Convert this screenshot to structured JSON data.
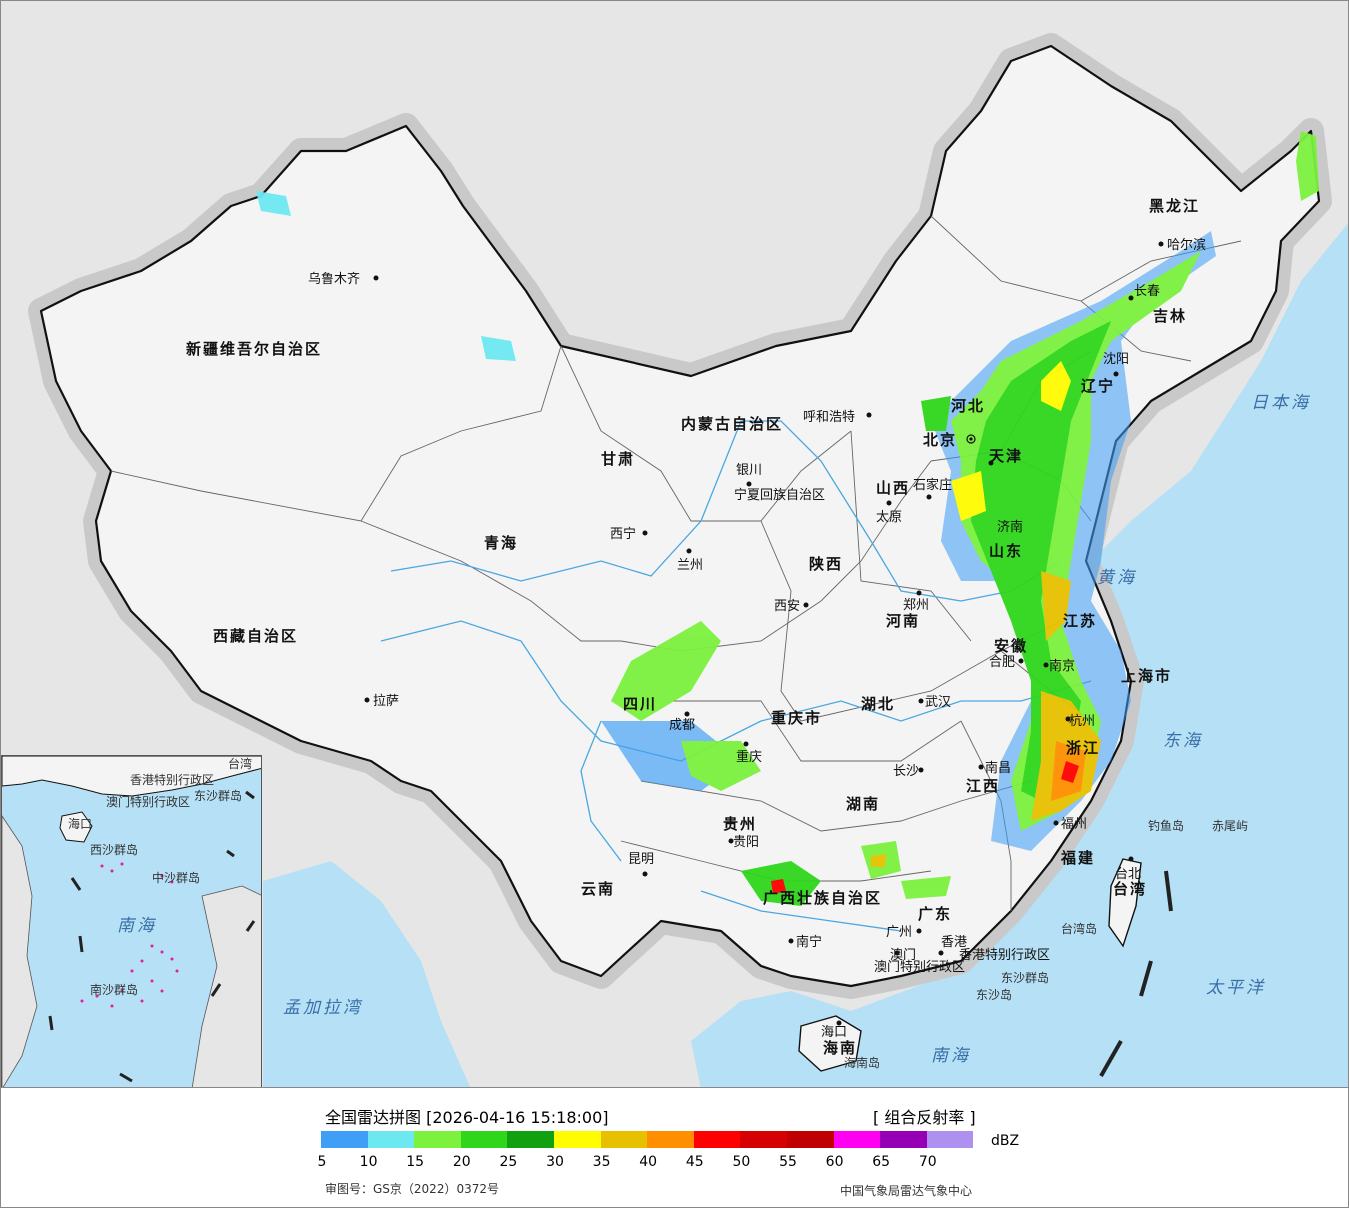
{
  "map": {
    "provinces": [
      {
        "name": "新疆维吾尔自治区"
      },
      {
        "name": "西藏自治区"
      },
      {
        "name": "青海"
      },
      {
        "name": "甘肃"
      },
      {
        "name": "内蒙古自治区"
      },
      {
        "name": "黑龙江"
      },
      {
        "name": "吉林"
      },
      {
        "name": "辽宁"
      },
      {
        "name": "河北"
      },
      {
        "name": "山西"
      },
      {
        "name": "山东"
      },
      {
        "name": "陕西"
      },
      {
        "name": "河南"
      },
      {
        "name": "四川"
      },
      {
        "name": "重庆市"
      },
      {
        "name": "湖北"
      },
      {
        "name": "安徽"
      },
      {
        "name": "江苏"
      },
      {
        "name": "上海市"
      },
      {
        "name": "浙江"
      },
      {
        "name": "江西"
      },
      {
        "name": "湖南"
      },
      {
        "name": "贵州"
      },
      {
        "name": "云南"
      },
      {
        "name": "广西壮族自治区"
      },
      {
        "name": "广东"
      },
      {
        "name": "福建"
      },
      {
        "name": "台湾"
      },
      {
        "name": "海南"
      },
      {
        "name": "宁夏回族自治区"
      },
      {
        "name": "天津"
      },
      {
        "name": "香港特别行政区"
      },
      {
        "name": "澳门特别行政区"
      }
    ],
    "cities": [
      {
        "name": "乌鲁木齐"
      },
      {
        "name": "拉萨"
      },
      {
        "name": "西宁"
      },
      {
        "name": "兰州"
      },
      {
        "name": "银川"
      },
      {
        "name": "呼和浩特"
      },
      {
        "name": "北京"
      },
      {
        "name": "石家庄"
      },
      {
        "name": "太原"
      },
      {
        "name": "济南"
      },
      {
        "name": "西安"
      },
      {
        "name": "郑州"
      },
      {
        "name": "成都"
      },
      {
        "name": "重庆"
      },
      {
        "name": "武汉"
      },
      {
        "name": "合肥"
      },
      {
        "name": "南京"
      },
      {
        "name": "杭州"
      },
      {
        "name": "南昌"
      },
      {
        "name": "长沙"
      },
      {
        "name": "贵阳"
      },
      {
        "name": "昆明"
      },
      {
        "name": "南宁"
      },
      {
        "name": "广州"
      },
      {
        "name": "香港"
      },
      {
        "name": "澳门"
      },
      {
        "name": "福州"
      },
      {
        "name": "台北"
      },
      {
        "name": "海口"
      },
      {
        "name": "沈阳"
      },
      {
        "name": "长春"
      },
      {
        "name": "哈尔滨"
      }
    ],
    "seas": [
      {
        "name": "日本海"
      },
      {
        "name": "黄海"
      },
      {
        "name": "东海"
      },
      {
        "name": "太平洋"
      },
      {
        "name": "南海"
      },
      {
        "name": "孟加拉湾"
      }
    ],
    "islands": [
      {
        "name": "钓鱼岛"
      },
      {
        "name": "赤尾屿"
      },
      {
        "name": "台湾岛"
      },
      {
        "name": "东沙群岛"
      },
      {
        "name": "东沙岛"
      },
      {
        "name": "海南岛"
      }
    ],
    "inset_labels": [
      {
        "name": "南海"
      },
      {
        "name": "海口"
      },
      {
        "name": "香港特别行政区"
      },
      {
        "name": "澳门特别行政区"
      },
      {
        "name": "东沙群岛"
      },
      {
        "name": "西沙群岛"
      },
      {
        "name": "中沙群岛"
      },
      {
        "name": "南沙群岛"
      },
      {
        "name": "台湾"
      }
    ],
    "colors": {
      "land": "#f4f4f4",
      "ocean": "#b5e0f5",
      "outside": "#e6e6e6",
      "border": "#111111",
      "river": "#4aa7e0"
    }
  },
  "legend": {
    "title": "全国雷达拼图 [2026-04-16 15:18:00]",
    "product": "[ 组合反射率 ]",
    "unit": "dBZ",
    "scale": [
      {
        "value": 5,
        "color": "#3f9ef5"
      },
      {
        "value": 10,
        "color": "#6ee8f0"
      },
      {
        "value": 15,
        "color": "#7cf13e"
      },
      {
        "value": 20,
        "color": "#2fd61c"
      },
      {
        "value": 25,
        "color": "#10a010"
      },
      {
        "value": 30,
        "color": "#fffd00"
      },
      {
        "value": 35,
        "color": "#e7c100"
      },
      {
        "value": 40,
        "color": "#ff8f00"
      },
      {
        "value": 45,
        "color": "#ff0000"
      },
      {
        "value": 50,
        "color": "#d60000"
      },
      {
        "value": 55,
        "color": "#c00000"
      },
      {
        "value": 60,
        "color": "#ff00f0"
      },
      {
        "value": 65,
        "color": "#9600b5"
      },
      {
        "value": 70,
        "color": "#ad90f0"
      }
    ],
    "approval_no": "审图号：GS京（2022）0372号",
    "credit": "中国气象局雷达气象中心"
  }
}
